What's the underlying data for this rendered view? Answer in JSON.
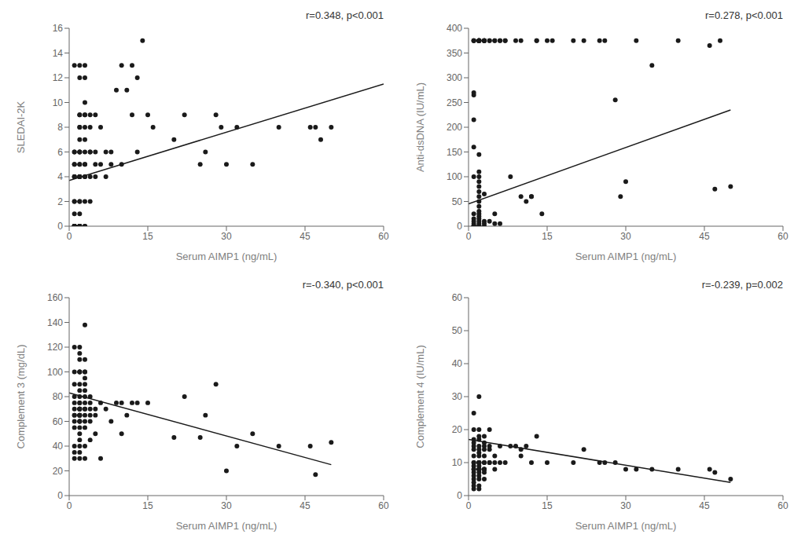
{
  "chart_data": [
    {
      "type": "scatter",
      "xlabel": "Serum AIMP1 (ng/mL)",
      "ylabel": "SLEDAI-2K",
      "annotation": "r=0.348, p<0.001",
      "xlim": [
        0,
        60
      ],
      "ylim": [
        0,
        16
      ],
      "xticks": [
        0,
        15,
        30,
        45,
        60
      ],
      "yticks": [
        0,
        2,
        4,
        6,
        8,
        10,
        12,
        14,
        16
      ],
      "grid": false,
      "series": [
        {
          "type": "scatter",
          "color": "#1a1a1a",
          "x": [
            1,
            1,
            1,
            1,
            1,
            1,
            1,
            1,
            1,
            1,
            1,
            1,
            1,
            1,
            1,
            1,
            1,
            1,
            1,
            2,
            2,
            2,
            2,
            2,
            2,
            2,
            2,
            2,
            2,
            2,
            2,
            2,
            2,
            2,
            2,
            2,
            2,
            2,
            2,
            2,
            2,
            2,
            2,
            2,
            3,
            3,
            3,
            3,
            3,
            3,
            3,
            3,
            3,
            3,
            3,
            3,
            3,
            3,
            3,
            4,
            4,
            4,
            4,
            4,
            4,
            5,
            5,
            5,
            5,
            6,
            6,
            7,
            7,
            8,
            8,
            9,
            10,
            10,
            11,
            12,
            12,
            13,
            13,
            14,
            15,
            16,
            20,
            22,
            25,
            26,
            28,
            29,
            30,
            32,
            35,
            40,
            46,
            47,
            48,
            50
          ],
          "values": [
            0,
            0,
            0,
            0,
            0,
            0,
            0,
            0,
            1,
            2,
            2,
            4,
            4,
            4,
            5,
            5,
            6,
            6,
            13,
            0,
            0,
            0,
            0,
            0,
            0,
            1,
            2,
            2,
            4,
            4,
            4,
            4,
            5,
            5,
            6,
            6,
            6,
            7,
            8,
            8,
            9,
            9,
            12,
            13,
            0,
            0,
            2,
            4,
            4,
            5,
            5,
            6,
            7,
            8,
            9,
            9,
            10,
            12,
            13,
            2,
            4,
            6,
            6,
            8,
            9,
            4,
            5,
            6,
            9,
            5,
            8,
            4,
            6,
            5,
            6,
            11,
            5,
            13,
            11,
            9,
            13,
            6,
            12,
            15,
            9,
            8,
            7,
            9,
            5,
            6,
            9,
            8,
            5,
            8,
            5,
            8,
            8,
            8,
            7,
            8
          ]
        },
        {
          "type": "line",
          "color": "#1a1a1a",
          "x": [
            0,
            60
          ],
          "values": [
            3.7,
            11.5
          ]
        }
      ]
    },
    {
      "type": "scatter",
      "xlabel": "Serum AIMP1 (ng/mL)",
      "ylabel": "Anti-dsDNA (IU/mL)",
      "annotation": "r=0.278, p<0.001",
      "xlim": [
        0,
        60
      ],
      "ylim": [
        0,
        400
      ],
      "xticks": [
        0,
        15,
        30,
        45,
        60
      ],
      "yticks": [
        0,
        50,
        100,
        150,
        200,
        250,
        300,
        350,
        400
      ],
      "grid": false,
      "series": [
        {
          "type": "scatter",
          "color": "#1a1a1a",
          "x": [
            1,
            1,
            1,
            1,
            1,
            1,
            1,
            1,
            1,
            1,
            1,
            1,
            1,
            2,
            2,
            2,
            2,
            2,
            2,
            2,
            2,
            2,
            2,
            2,
            2,
            2,
            2,
            2,
            2,
            2,
            3,
            3,
            3,
            3,
            4,
            4,
            5,
            5,
            5,
            6,
            6,
            7,
            8,
            9,
            10,
            11,
            12,
            13,
            14,
            15,
            16,
            20,
            22,
            25,
            26,
            28,
            29,
            30,
            32,
            35,
            40,
            46,
            47,
            48,
            50,
            1,
            1,
            1,
            2,
            2,
            2,
            2,
            2,
            2,
            2,
            3,
            3,
            3,
            3,
            4,
            5,
            6,
            7,
            10,
            12,
            13,
            2,
            2,
            3,
            2
          ],
          "values": [
            0,
            0,
            0,
            1,
            5,
            10,
            15,
            25,
            100,
            215,
            265,
            270,
            375,
            0,
            0,
            1,
            5,
            10,
            15,
            20,
            25,
            30,
            40,
            50,
            60,
            70,
            80,
            90,
            100,
            110,
            0,
            5,
            10,
            375,
            10,
            375,
            5,
            25,
            375,
            5,
            375,
            375,
            100,
            375,
            60,
            50,
            60,
            375,
            25,
            375,
            375,
            375,
            375,
            375,
            375,
            255,
            60,
            90,
            375,
            325,
            375,
            365,
            75,
            375,
            80,
            160,
            375,
            375,
            375,
            375,
            375,
            375,
            375,
            145,
            375,
            375,
            375,
            65,
            375,
            375,
            375,
            375,
            375,
            375,
            60,
            375,
            375,
            375,
            375,
            375
          ]
        },
        {
          "type": "line",
          "color": "#1a1a1a",
          "x": [
            0,
            50
          ],
          "values": [
            45,
            235
          ]
        }
      ]
    },
    {
      "type": "scatter",
      "xlabel": "Serum AIMP1 (ng/mL)",
      "ylabel": "Complement 3 (mg/dL)",
      "annotation": "r=-0.340, p<0.001",
      "xlim": [
        0,
        60
      ],
      "ylim": [
        0,
        160
      ],
      "xticks": [
        0,
        15,
        30,
        45,
        60
      ],
      "yticks": [
        0,
        20,
        40,
        60,
        80,
        100,
        120,
        140,
        160
      ],
      "grid": false,
      "series": [
        {
          "type": "scatter",
          "color": "#1a1a1a",
          "x": [
            1,
            1,
            1,
            1,
            1,
            1,
            1,
            1,
            1,
            1,
            1,
            1,
            1,
            2,
            2,
            2,
            2,
            2,
            2,
            2,
            2,
            2,
            2,
            2,
            2,
            2,
            2,
            2,
            2,
            2,
            2,
            2,
            2,
            2,
            2,
            2,
            2,
            2,
            2,
            2,
            2,
            3,
            3,
            3,
            3,
            3,
            3,
            3,
            3,
            3,
            3,
            3,
            3,
            3,
            3,
            3,
            3,
            4,
            4,
            4,
            4,
            4,
            4,
            5,
            5,
            5,
            6,
            6,
            7,
            8,
            9,
            10,
            10,
            11,
            12,
            13,
            15,
            20,
            22,
            25,
            26,
            28,
            30,
            32,
            35,
            40,
            46,
            47,
            50
          ],
          "values": [
            30,
            35,
            40,
            55,
            60,
            65,
            65,
            70,
            75,
            80,
            90,
            100,
            120,
            30,
            35,
            40,
            45,
            50,
            55,
            60,
            60,
            60,
            65,
            65,
            65,
            65,
            70,
            70,
            70,
            70,
            75,
            75,
            80,
            85,
            90,
            100,
            100,
            100,
            110,
            115,
            120,
            30,
            40,
            55,
            60,
            65,
            70,
            70,
            75,
            80,
            85,
            90,
            95,
            100,
            100,
            110,
            138,
            45,
            60,
            65,
            70,
            75,
            80,
            50,
            65,
            70,
            30,
            75,
            70,
            60,
            75,
            50,
            75,
            65,
            75,
            75,
            75,
            47,
            80,
            47,
            65,
            90,
            20,
            40,
            50,
            40,
            40,
            17,
            43
          ]
        },
        {
          "type": "line",
          "color": "#1a1a1a",
          "x": [
            0,
            50
          ],
          "values": [
            83,
            25
          ]
        }
      ]
    },
    {
      "type": "scatter",
      "xlabel": "Serum AIMP1 (ng/mL)",
      "ylabel": "Complement 4 (IU/mL)",
      "annotation": "r=-0.239, p=0.002",
      "xlim": [
        0,
        60
      ],
      "ylim": [
        0,
        60
      ],
      "xticks": [
        0,
        15,
        30,
        45,
        60
      ],
      "yticks": [
        0,
        10,
        20,
        30,
        40,
        50,
        60
      ],
      "grid": false,
      "series": [
        {
          "type": "scatter",
          "color": "#1a1a1a",
          "x": [
            1,
            1,
            1,
            1,
            1,
            1,
            1,
            1,
            1,
            1,
            1,
            1,
            1,
            1,
            1,
            1,
            1,
            1,
            2,
            2,
            2,
            2,
            2,
            2,
            2,
            2,
            2,
            2,
            2,
            2,
            2,
            2,
            2,
            2,
            2,
            2,
            2,
            2,
            2,
            2,
            3,
            3,
            3,
            3,
            3,
            3,
            3,
            3,
            3,
            3,
            3,
            3,
            4,
            4,
            4,
            4,
            4,
            5,
            5,
            5,
            6,
            6,
            7,
            8,
            9,
            10,
            10,
            11,
            12,
            13,
            15,
            20,
            22,
            25,
            26,
            28,
            30,
            32,
            35,
            40,
            46,
            47,
            50
          ],
          "values": [
            2,
            3,
            4,
            5,
            6,
            7,
            8,
            8,
            9,
            10,
            10,
            12,
            14,
            15,
            16,
            17,
            20,
            25,
            2,
            3,
            5,
            6,
            7,
            8,
            8,
            8,
            8,
            9,
            10,
            10,
            10,
            10,
            12,
            13,
            14,
            15,
            17,
            18,
            20,
            30,
            5,
            7,
            8,
            8,
            8,
            10,
            10,
            12,
            14,
            15,
            16,
            18,
            10,
            10,
            14,
            15,
            20,
            8,
            10,
            12,
            10,
            15,
            10,
            15,
            15,
            12,
            14,
            15,
            10,
            18,
            10,
            10,
            14,
            10,
            10,
            10,
            8,
            8,
            8,
            8,
            8,
            7,
            5
          ]
        },
        {
          "type": "line",
          "color": "#1a1a1a",
          "x": [
            0,
            50
          ],
          "values": [
            17,
            4
          ]
        }
      ]
    }
  ]
}
